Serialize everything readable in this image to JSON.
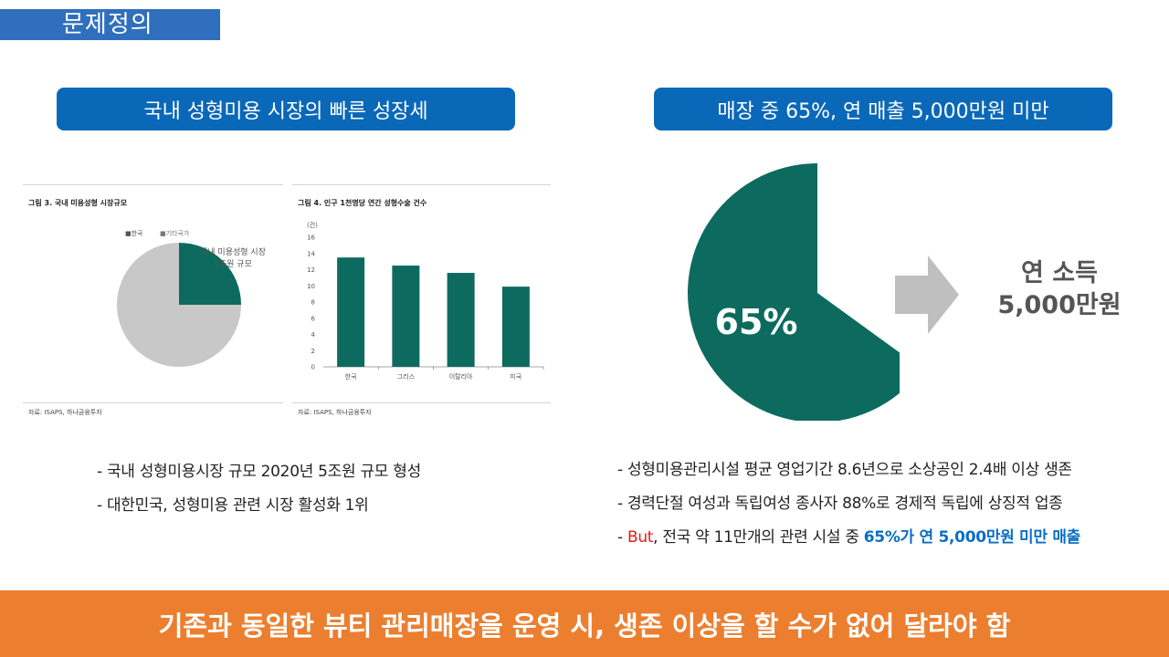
{
  "header": {
    "section_label": "문제정의"
  },
  "left": {
    "pill": "국내 성형미용 시장의 빠른 성장세",
    "figure1": {
      "title": "그림 3. 국내 미용성형 시장규모",
      "legend": [
        "■한국",
        "■기타국가"
      ],
      "annotation": [
        "국내 미용성형 시장",
        "5조원 규모"
      ],
      "source": "자료: ISAPS, 하나금융투자"
    },
    "figure2": {
      "title": "그림 4. 인구 1천명당 연간 성형수술 건수",
      "unit": "(건)",
      "source": "자료: ISAPS, 하나금융투자"
    },
    "bullets": {
      "b1": "- 국내 성형미용시장 규모 2020년 5조원 규모 형성",
      "b2": "- 대한민국, 성형미용 관련 시장 활성화 1위"
    }
  },
  "right": {
    "pill": "매장 중 65%, 연 매출 5,000만원 미만",
    "pie_label": "65%",
    "income_line1": "연 소득",
    "income_line2": "5,000만원",
    "bullets": {
      "b1": "- 성형미용관리시설 평균 영업기간 8.6년으로 소상공인 2.4배 이상 생존",
      "b2": "- 경력단절 여성과 독립여성 종사자 88%로 경제적 독립에 상징적 업종",
      "b3_dash": "- ",
      "b3_red": "But",
      "b3_mid": ", 전국 약 11만개의 관련 시설 중 ",
      "b3_blue": "65%가 연 5,000만원 미만 매출"
    }
  },
  "banner": "기존과 동일한 뷰티 관리매장을 운영 시, 생존 이상을 할 수가 없어 달라야 함",
  "colors": {
    "teal": "#0c6b5e",
    "grey": "#c8c8c8",
    "blue_pill": "#0a68b8",
    "orange": "#ec7f2f"
  },
  "chart_data": [
    {
      "type": "pie",
      "title": "그림 3. 국내 미용성형 시장규모",
      "categories": [
        "한국",
        "기타국가"
      ],
      "values": [
        25,
        75
      ]
    },
    {
      "type": "bar",
      "title": "그림 4. 인구 1천명당 연간 성형수술 건수",
      "ylabel": "(건)",
      "categories": [
        "한국",
        "그리스",
        "이탈리아",
        "미국"
      ],
      "values": [
        13.5,
        12.5,
        11.6,
        9.9
      ],
      "ylim": [
        0,
        16
      ],
      "yticks": [
        0,
        2,
        4,
        6,
        8,
        10,
        12,
        14,
        16
      ]
    },
    {
      "type": "pie",
      "categories": [
        "65%",
        ""
      ],
      "values": [
        65,
        35
      ]
    }
  ]
}
